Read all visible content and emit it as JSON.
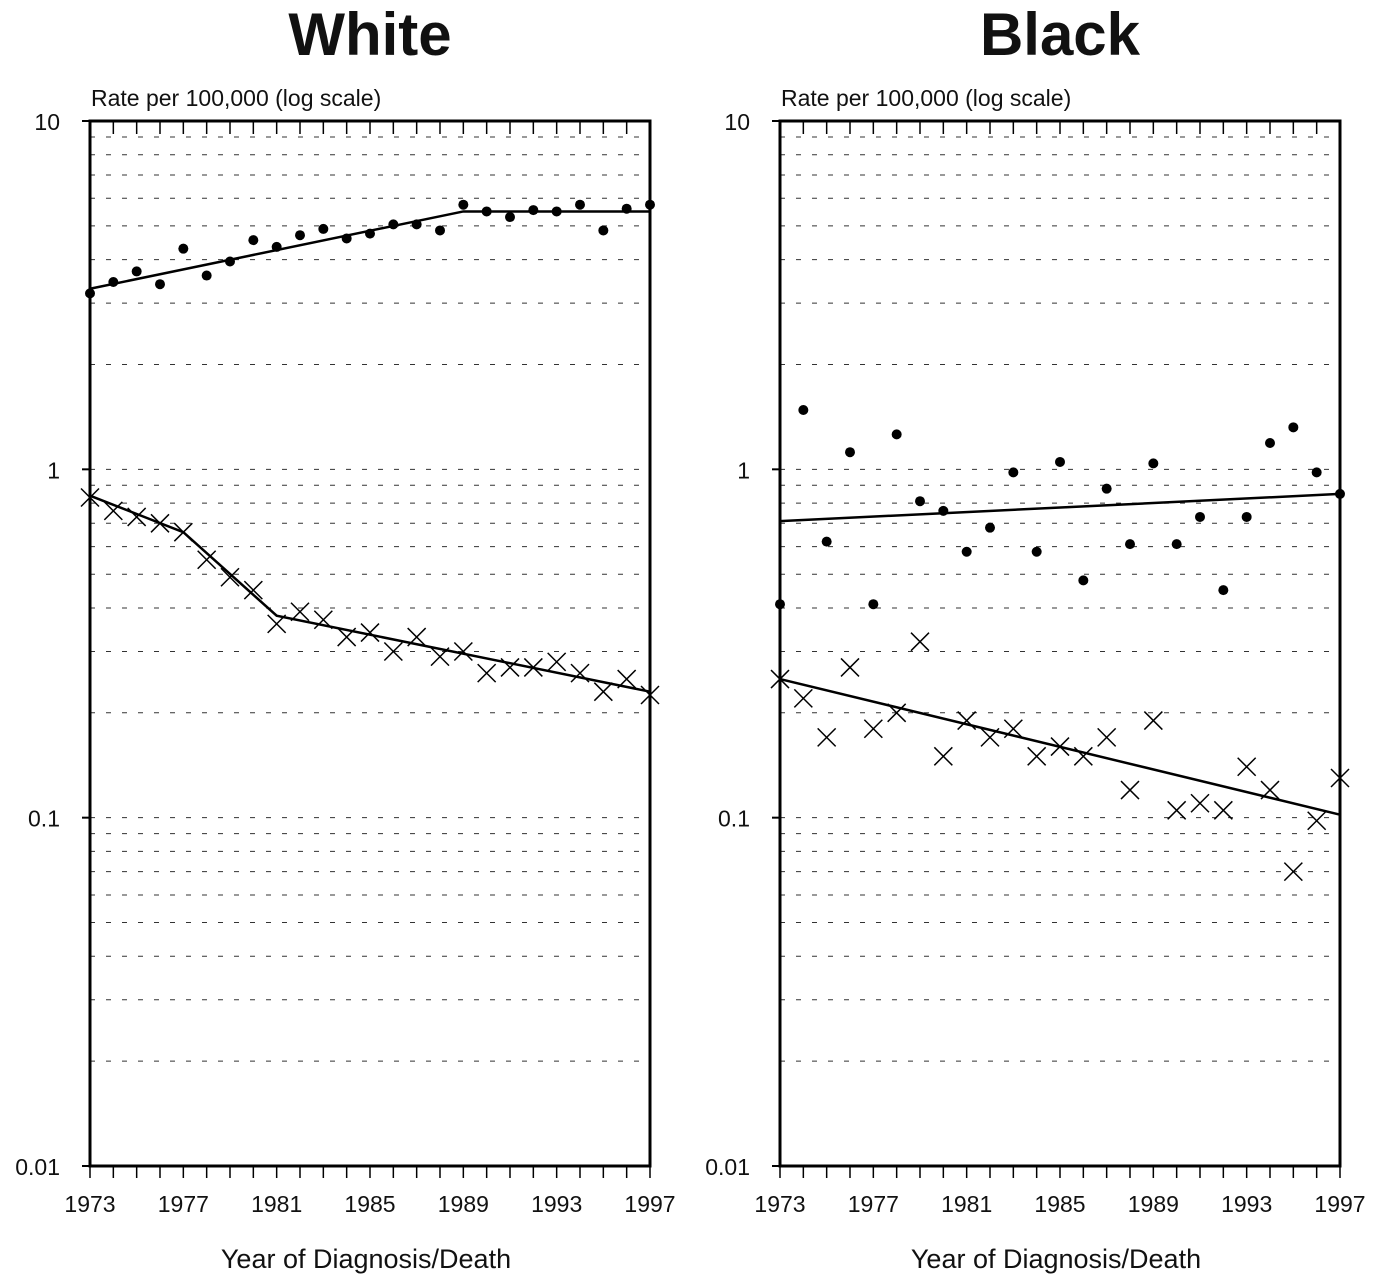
{
  "chart_data": [
    {
      "type": "scatter",
      "title": "White",
      "ylabel": "Rate per 100,000 (log scale)",
      "xlabel": "Year of Diagnosis/Death",
      "yscale": "log",
      "ylim": [
        0.01,
        10
      ],
      "xlim": [
        1973,
        1997
      ],
      "yticks": [
        "10",
        "1",
        "0.1",
        "0.01"
      ],
      "xticks": [
        "1973",
        "1977",
        "1981",
        "1985",
        "1989",
        "1993",
        "1997"
      ],
      "grid": "dashed horizontal",
      "series": [
        {
          "marker": "dot",
          "x": [
            1973,
            1974,
            1975,
            1976,
            1977,
            1978,
            1979,
            1980,
            1981,
            1982,
            1983,
            1984,
            1985,
            1986,
            1987,
            1988,
            1989,
            1990,
            1991,
            1992,
            1993,
            1994,
            1995,
            1996,
            1997
          ],
          "y": [
            3.2,
            3.45,
            3.7,
            3.4,
            4.3,
            3.6,
            3.95,
            4.55,
            4.35,
            4.7,
            4.9,
            4.6,
            4.75,
            5.05,
            5.05,
            4.85,
            5.75,
            5.5,
            5.3,
            5.55,
            5.5,
            5.75,
            4.85,
            5.6,
            5.75
          ],
          "trend": {
            "x": [
              1973,
              1989,
              1997
            ],
            "y": [
              3.3,
              5.5,
              5.5
            ]
          }
        },
        {
          "marker": "x",
          "x": [
            1973,
            1974,
            1975,
            1976,
            1977,
            1978,
            1979,
            1980,
            1981,
            1982,
            1983,
            1984,
            1985,
            1986,
            1987,
            1988,
            1989,
            1990,
            1991,
            1992,
            1993,
            1994,
            1995,
            1996,
            1997
          ],
          "y": [
            0.83,
            0.76,
            0.73,
            0.7,
            0.66,
            0.55,
            0.49,
            0.45,
            0.36,
            0.39,
            0.37,
            0.33,
            0.34,
            0.3,
            0.33,
            0.29,
            0.3,
            0.26,
            0.27,
            0.27,
            0.28,
            0.26,
            0.23,
            0.25,
            0.225
          ],
          "trend": {
            "x": [
              1973,
              1977,
              1981,
              1997
            ],
            "y": [
              0.84,
              0.66,
              0.38,
              0.23
            ]
          }
        }
      ]
    },
    {
      "type": "scatter",
      "title": "Black",
      "ylabel": "Rate per 100,000 (log scale)",
      "xlabel": "Year of Diagnosis/Death",
      "yscale": "log",
      "ylim": [
        0.01,
        10
      ],
      "xlim": [
        1973,
        1997
      ],
      "yticks": [
        "10",
        "1",
        "0.1",
        "0.01"
      ],
      "xticks": [
        "1973",
        "1977",
        "1981",
        "1985",
        "1989",
        "1993",
        "1997"
      ],
      "grid": "dashed horizontal",
      "series": [
        {
          "marker": "dot",
          "x": [
            1973,
            1974,
            1975,
            1976,
            1977,
            1978,
            1979,
            1980,
            1981,
            1982,
            1983,
            1984,
            1985,
            1986,
            1987,
            1988,
            1989,
            1990,
            1991,
            1992,
            1993,
            1994,
            1995,
            1996,
            1997
          ],
          "y": [
            0.41,
            1.48,
            0.62,
            1.12,
            0.41,
            1.26,
            0.81,
            0.76,
            0.58,
            0.68,
            0.98,
            0.58,
            1.05,
            0.48,
            0.88,
            0.61,
            1.04,
            0.61,
            0.73,
            0.45,
            0.73,
            1.19,
            1.32,
            0.98,
            0.85
          ],
          "trend": {
            "x": [
              1973,
              1997
            ],
            "y": [
              0.71,
              0.85
            ]
          }
        },
        {
          "marker": "x",
          "x": [
            1973,
            1974,
            1975,
            1976,
            1977,
            1978,
            1979,
            1980,
            1981,
            1982,
            1983,
            1984,
            1985,
            1986,
            1987,
            1988,
            1989,
            1990,
            1991,
            1992,
            1993,
            1994,
            1995,
            1996,
            1997
          ],
          "y": [
            0.25,
            0.22,
            0.17,
            0.27,
            0.18,
            0.2,
            0.32,
            0.15,
            0.19,
            0.17,
            0.18,
            0.15,
            0.16,
            0.15,
            0.17,
            0.12,
            0.19,
            0.105,
            0.11,
            0.105,
            0.14,
            0.12,
            0.07,
            0.098,
            0.13
          ],
          "trend": {
            "x": [
              1973,
              1997
            ],
            "y": [
              0.25,
              0.102
            ]
          }
        }
      ]
    }
  ]
}
